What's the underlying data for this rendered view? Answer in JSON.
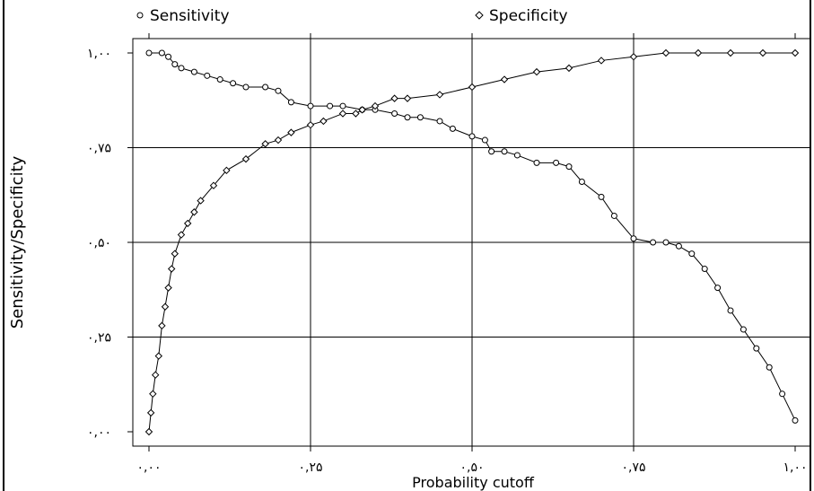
{
  "chart_data": {
    "type": "line",
    "title": "",
    "xlabel": "Probability cutoff",
    "ylabel": "Sensitivity/Specificity",
    "xlim": [
      0,
      1
    ],
    "ylim": [
      0,
      1
    ],
    "grid": true,
    "legend_position": "top",
    "x_ticks": [
      {
        "value": 0.0,
        "label": "۰,۰۰"
      },
      {
        "value": 0.25,
        "label": "۰,۲۵"
      },
      {
        "value": 0.5,
        "label": "۰,۵۰"
      },
      {
        "value": 0.75,
        "label": "۰,۷۵"
      },
      {
        "value": 1.0,
        "label": "۱,۰۰"
      }
    ],
    "y_ticks": [
      {
        "value": 0.0,
        "label": "۰,۰۰"
      },
      {
        "value": 0.25,
        "label": "۰,۲۵"
      },
      {
        "value": 0.5,
        "label": "۰,۵۰"
      },
      {
        "value": 0.75,
        "label": "۰,۷۵"
      },
      {
        "value": 1.0,
        "label": "۱,۰۰"
      }
    ],
    "series": [
      {
        "name": "Sensitivity",
        "marker": "circle",
        "color": "#000000",
        "x": [
          0.0,
          0.02,
          0.03,
          0.04,
          0.05,
          0.07,
          0.09,
          0.11,
          0.13,
          0.15,
          0.18,
          0.2,
          0.22,
          0.25,
          0.28,
          0.3,
          0.33,
          0.35,
          0.38,
          0.4,
          0.42,
          0.45,
          0.47,
          0.5,
          0.52,
          0.53,
          0.55,
          0.57,
          0.6,
          0.63,
          0.65,
          0.67,
          0.7,
          0.72,
          0.75,
          0.78,
          0.8,
          0.82,
          0.84,
          0.86,
          0.88,
          0.9,
          0.92,
          0.94,
          0.96,
          0.98,
          1.0
        ],
        "values": [
          1.0,
          1.0,
          0.99,
          0.97,
          0.96,
          0.95,
          0.94,
          0.93,
          0.92,
          0.91,
          0.91,
          0.9,
          0.87,
          0.86,
          0.86,
          0.86,
          0.85,
          0.85,
          0.84,
          0.83,
          0.83,
          0.82,
          0.8,
          0.78,
          0.77,
          0.74,
          0.74,
          0.73,
          0.71,
          0.71,
          0.7,
          0.66,
          0.62,
          0.57,
          0.51,
          0.5,
          0.5,
          0.49,
          0.47,
          0.43,
          0.38,
          0.32,
          0.27,
          0.22,
          0.17,
          0.1,
          0.03
        ]
      },
      {
        "name": "Specificity",
        "marker": "diamond",
        "color": "#000000",
        "x": [
          0.0,
          0.003,
          0.006,
          0.01,
          0.015,
          0.02,
          0.025,
          0.03,
          0.035,
          0.04,
          0.05,
          0.06,
          0.07,
          0.08,
          0.1,
          0.12,
          0.15,
          0.18,
          0.2,
          0.22,
          0.25,
          0.27,
          0.3,
          0.32,
          0.33,
          0.35,
          0.38,
          0.4,
          0.45,
          0.5,
          0.55,
          0.6,
          0.65,
          0.7,
          0.75,
          0.8,
          0.85,
          0.9,
          0.95,
          1.0
        ],
        "values": [
          0.0,
          0.05,
          0.1,
          0.15,
          0.2,
          0.28,
          0.33,
          0.38,
          0.43,
          0.47,
          0.52,
          0.55,
          0.58,
          0.61,
          0.65,
          0.69,
          0.72,
          0.76,
          0.77,
          0.79,
          0.81,
          0.82,
          0.84,
          0.84,
          0.85,
          0.86,
          0.88,
          0.88,
          0.89,
          0.91,
          0.93,
          0.95,
          0.96,
          0.98,
          0.99,
          1.0,
          1.0,
          1.0,
          1.0,
          1.0
        ]
      }
    ]
  }
}
